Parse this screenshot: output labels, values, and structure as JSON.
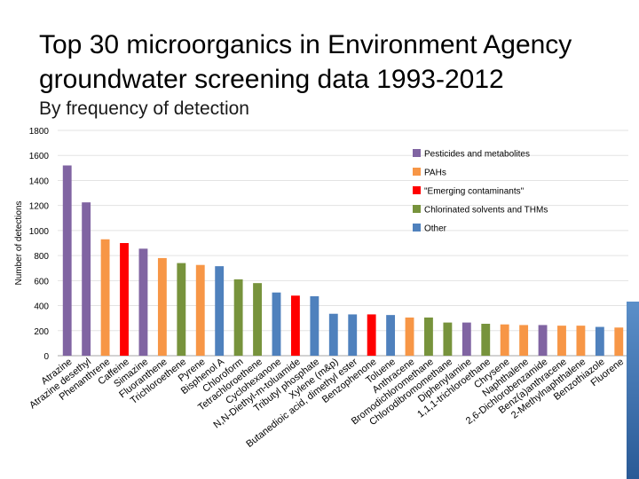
{
  "page": {
    "title": "Top 30 microorganics in Environment Agency groundwater screening data 1993-2012",
    "subtitle": "By frequency of detection"
  },
  "chart_data": {
    "type": "bar",
    "ylabel": "Number of detections",
    "ylim": [
      0,
      1800
    ],
    "yticks": [
      0,
      200,
      400,
      600,
      800,
      1000,
      1200,
      1400,
      1600,
      1800
    ],
    "grid": true,
    "legend_position": "top-right",
    "legend": [
      {
        "name": "Pesticides and metabolites",
        "color": "#8064A2"
      },
      {
        "name": "PAHs",
        "color": "#F79646"
      },
      {
        "name": "\"Emerging contaminants\"",
        "color": "#FF0000"
      },
      {
        "name": "Chlorinated solvents and THMs",
        "color": "#77933C"
      },
      {
        "name": "Other",
        "color": "#4F81BD"
      }
    ],
    "categories": [
      "Atrazine",
      "Atrazine desethyl",
      "Phenanthrene",
      "Caffeine",
      "Simazine",
      "Fluoranthene",
      "Trichloroethene",
      "Pyrene",
      "Bisphenol A",
      "Chloroform",
      "Tetrachloroethene",
      "Cyclohexanone",
      "N,N-Diethyl-m-toluamide",
      "Tributyl phosphate",
      "Xylene (m&p)",
      "Butanedioic acid, dimethyl ester",
      "Benzophenone",
      "Toluene",
      "Anthracene",
      "Bromodichloromethane",
      "Chlorodibromomethane",
      "Diphenylamine",
      "1,1,1-trichloroethane",
      "Chrysene",
      "Naphthalene",
      "2,6-Dichlorobenzamide",
      "Benz(a)anthracene",
      "2-Methylnaphthalene",
      "Benzothiazole",
      "Fluorene"
    ],
    "values": [
      1520,
      1225,
      930,
      900,
      855,
      780,
      740,
      725,
      715,
      610,
      580,
      505,
      480,
      475,
      335,
      330,
      330,
      325,
      305,
      305,
      265,
      265,
      255,
      250,
      245,
      245,
      240,
      240,
      230,
      225
    ],
    "groups": [
      "Pesticides and metabolites",
      "Pesticides and metabolites",
      "PAHs",
      "\"Emerging contaminants\"",
      "Pesticides and metabolites",
      "PAHs",
      "Chlorinated solvents and THMs",
      "PAHs",
      "Other",
      "Chlorinated solvents and THMs",
      "Chlorinated solvents and THMs",
      "Other",
      "\"Emerging contaminants\"",
      "Other",
      "Other",
      "Other",
      "\"Emerging contaminants\"",
      "Other",
      "PAHs",
      "Chlorinated solvents and THMs",
      "Chlorinated solvents and THMs",
      "Pesticides and metabolites",
      "Chlorinated solvents and THMs",
      "PAHs",
      "PAHs",
      "Pesticides and metabolites",
      "PAHs",
      "PAHs",
      "Other",
      "PAHs"
    ]
  }
}
